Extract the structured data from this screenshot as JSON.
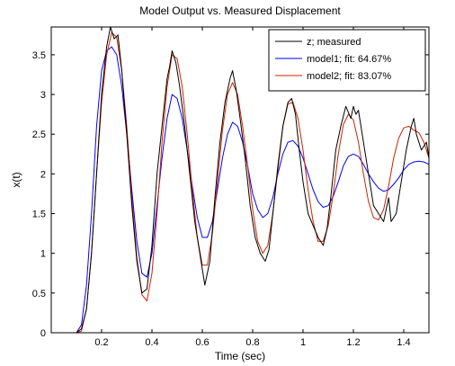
{
  "chart_data": {
    "type": "line",
    "title": "Model Output vs. Measured Displacement",
    "xlabel": "Time (sec)",
    "ylabel": "x(t)",
    "xlim": [
      0,
      1.5
    ],
    "ylim": [
      0,
      3.85
    ],
    "xticks": [
      0.2,
      0.4,
      0.6,
      0.8,
      1.0,
      1.2,
      1.4
    ],
    "xtick_labels": [
      "0.2",
      "0.4",
      "0.6",
      "0.8",
      "1",
      "1.2",
      "1.4"
    ],
    "yticks": [
      0,
      0.5,
      1,
      1.5,
      2,
      2.5,
      3,
      3.5
    ],
    "ytick_labels": [
      "0",
      "0.5",
      "1",
      "1.5",
      "2",
      "2.5",
      "3",
      "3.5"
    ],
    "grid": false,
    "legend_position": "top-right",
    "series": [
      {
        "name": "z; measured",
        "color": "#000000",
        "x": [
          0,
          0.1,
          0.12,
          0.14,
          0.16,
          0.18,
          0.2,
          0.22,
          0.235,
          0.25,
          0.265,
          0.28,
          0.3,
          0.32,
          0.34,
          0.36,
          0.38,
          0.4,
          0.42,
          0.44,
          0.46,
          0.47,
          0.48,
          0.495,
          0.51,
          0.53,
          0.55,
          0.57,
          0.59,
          0.61,
          0.63,
          0.65,
          0.67,
          0.69,
          0.71,
          0.72,
          0.735,
          0.75,
          0.77,
          0.79,
          0.81,
          0.83,
          0.85,
          0.865,
          0.88,
          0.9,
          0.92,
          0.94,
          0.955,
          0.97,
          0.985,
          1.0,
          1.02,
          1.04,
          1.06,
          1.08,
          1.095,
          1.11,
          1.13,
          1.15,
          1.17,
          1.19,
          1.2,
          1.21,
          1.22,
          1.24,
          1.26,
          1.28,
          1.3,
          1.32,
          1.34,
          1.35,
          1.37,
          1.39,
          1.41,
          1.43,
          1.44,
          1.45,
          1.47,
          1.49,
          1.5
        ],
        "y": [
          0,
          0,
          0.05,
          0.3,
          1.0,
          2.0,
          3.0,
          3.6,
          3.85,
          3.7,
          3.75,
          3.3,
          2.5,
          1.6,
          0.9,
          0.5,
          0.55,
          1.1,
          2.0,
          2.6,
          3.2,
          3.35,
          3.55,
          3.4,
          3.1,
          2.6,
          2.0,
          1.4,
          1.0,
          0.6,
          0.9,
          1.7,
          2.4,
          2.9,
          3.2,
          3.3,
          3.05,
          2.7,
          2.2,
          1.6,
          1.2,
          1.0,
          0.9,
          1.05,
          1.5,
          2.1,
          2.6,
          2.9,
          2.95,
          2.75,
          2.3,
          1.9,
          1.5,
          1.35,
          1.2,
          1.1,
          1.3,
          1.7,
          2.3,
          2.6,
          2.85,
          2.7,
          2.85,
          2.75,
          2.8,
          2.4,
          2.0,
          1.6,
          1.5,
          1.4,
          1.7,
          1.4,
          1.5,
          1.9,
          2.3,
          2.6,
          2.7,
          2.5,
          2.3,
          2.4,
          2.2
        ]
      },
      {
        "name": "model1; fit: 64.67%",
        "color": "#0000ff",
        "x": [
          0,
          0.1,
          0.12,
          0.14,
          0.16,
          0.18,
          0.2,
          0.22,
          0.24,
          0.26,
          0.28,
          0.3,
          0.32,
          0.34,
          0.36,
          0.38,
          0.4,
          0.42,
          0.44,
          0.46,
          0.48,
          0.5,
          0.52,
          0.54,
          0.56,
          0.58,
          0.6,
          0.62,
          0.64,
          0.66,
          0.68,
          0.7,
          0.72,
          0.74,
          0.76,
          0.78,
          0.8,
          0.82,
          0.84,
          0.86,
          0.88,
          0.9,
          0.92,
          0.94,
          0.96,
          0.98,
          1.0,
          1.02,
          1.04,
          1.06,
          1.08,
          1.1,
          1.12,
          1.14,
          1.16,
          1.18,
          1.2,
          1.22,
          1.24,
          1.26,
          1.28,
          1.3,
          1.32,
          1.34,
          1.36,
          1.38,
          1.4,
          1.42,
          1.44,
          1.46,
          1.48,
          1.5
        ],
        "y": [
          0,
          0,
          0.1,
          0.6,
          1.5,
          2.6,
          3.3,
          3.55,
          3.6,
          3.5,
          3.1,
          2.5,
          1.8,
          1.15,
          0.75,
          0.7,
          1.0,
          1.6,
          2.2,
          2.7,
          3.0,
          2.95,
          2.7,
          2.3,
          1.85,
          1.45,
          1.2,
          1.2,
          1.4,
          1.8,
          2.2,
          2.5,
          2.65,
          2.6,
          2.4,
          2.1,
          1.75,
          1.55,
          1.45,
          1.5,
          1.7,
          2.0,
          2.25,
          2.4,
          2.42,
          2.35,
          2.2,
          2.0,
          1.8,
          1.65,
          1.58,
          1.6,
          1.72,
          1.9,
          2.1,
          2.22,
          2.25,
          2.22,
          2.12,
          2.0,
          1.9,
          1.82,
          1.78,
          1.8,
          1.87,
          1.95,
          2.05,
          2.12,
          2.15,
          2.16,
          2.15,
          2.12
        ]
      },
      {
        "name": "model2; fit: 83.07%",
        "color": "#cc2200",
        "x": [
          0,
          0.1,
          0.12,
          0.14,
          0.16,
          0.18,
          0.2,
          0.22,
          0.24,
          0.26,
          0.28,
          0.3,
          0.32,
          0.34,
          0.36,
          0.38,
          0.4,
          0.42,
          0.44,
          0.46,
          0.48,
          0.5,
          0.52,
          0.54,
          0.56,
          0.58,
          0.6,
          0.62,
          0.64,
          0.66,
          0.68,
          0.7,
          0.72,
          0.74,
          0.76,
          0.78,
          0.8,
          0.82,
          0.84,
          0.86,
          0.88,
          0.9,
          0.92,
          0.94,
          0.96,
          0.98,
          1.0,
          1.02,
          1.04,
          1.06,
          1.08,
          1.1,
          1.12,
          1.14,
          1.16,
          1.18,
          1.2,
          1.22,
          1.24,
          1.26,
          1.28,
          1.3,
          1.32,
          1.34,
          1.36,
          1.38,
          1.4,
          1.42,
          1.44,
          1.46,
          1.48,
          1.5
        ],
        "y": [
          0,
          0,
          0.02,
          0.3,
          1.0,
          2.0,
          2.9,
          3.5,
          3.78,
          3.72,
          3.3,
          2.6,
          1.7,
          0.95,
          0.48,
          0.4,
          0.75,
          1.5,
          2.4,
          3.1,
          3.5,
          3.45,
          3.1,
          2.5,
          1.8,
          1.2,
          0.85,
          0.85,
          1.25,
          1.9,
          2.55,
          3.0,
          3.15,
          3.0,
          2.6,
          2.1,
          1.55,
          1.15,
          1.0,
          1.1,
          1.5,
          2.05,
          2.6,
          2.88,
          2.9,
          2.7,
          2.3,
          1.8,
          1.4,
          1.15,
          1.15,
          1.35,
          1.75,
          2.25,
          2.62,
          2.75,
          2.68,
          2.4,
          2.0,
          1.65,
          1.45,
          1.42,
          1.55,
          1.85,
          2.2,
          2.45,
          2.58,
          2.6,
          2.55,
          2.52,
          2.4,
          2.2
        ]
      }
    ]
  }
}
